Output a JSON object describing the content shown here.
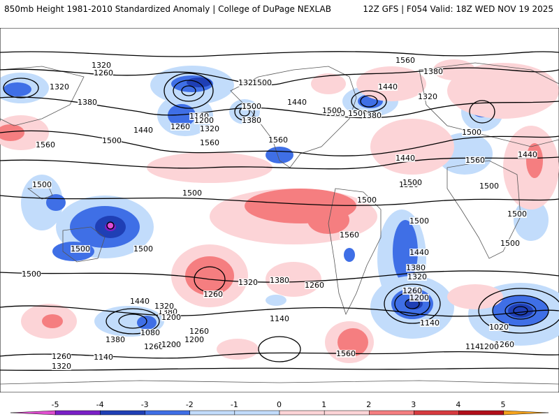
{
  "header": {
    "left_title": "850mb Height 1981-2010 Standardized Anomaly | College of DuPage NEXLAB",
    "right_title": "12Z GFS | F054 Valid: 18Z WED NOV 19 2025"
  },
  "map": {
    "contour_labels": [
      "1320",
      "1260",
      "1320",
      "1380",
      "1440",
      "1560",
      "1560",
      "1500",
      "1380",
      "1140",
      "1200",
      "1260",
      "1320",
      "1320",
      "1380",
      "1440",
      "1500",
      "1560",
      "1500",
      "1560",
      "1500",
      "1500",
      "1380",
      "1320",
      "1440",
      "1380",
      "1320",
      "1440",
      "1560",
      "1500",
      "1500",
      "1500",
      "1440",
      "1500",
      "1560",
      "1500",
      "1500",
      "1500",
      "1500",
      "1500",
      "1440",
      "1380",
      "1320",
      "1260",
      "1200",
      "1140",
      "1500",
      "1440",
      "1380",
      "1380",
      "1320",
      "1260",
      "1200",
      "1140",
      "1080",
      "1380",
      "1260",
      "1200",
      "1140",
      "1260",
      "1320",
      "1320",
      "1200",
      "1260",
      "1560",
      "1500",
      "1500",
      "1260",
      "1200",
      "1140",
      "1020",
      "1260",
      "1200"
    ],
    "colors": {
      "neg5": "#e04fd0",
      "neg4": "#7a1fc7",
      "neg3": "#1f3fb5",
      "neg2": "#3f6fe6",
      "neg1": "#c2dcfb",
      "pos1": "#fcd4d7",
      "pos2": "#f57e80",
      "pos3": "#d73a3f",
      "pos4": "#b10f1a",
      "pos5": "#f5a31d",
      "contour": "#000000",
      "land": "#555555"
    }
  },
  "colorbar": {
    "ticks": [
      "-5",
      "-4",
      "-3",
      "-2",
      "-1",
      "0",
      "1",
      "2",
      "3",
      "4",
      "5"
    ]
  }
}
